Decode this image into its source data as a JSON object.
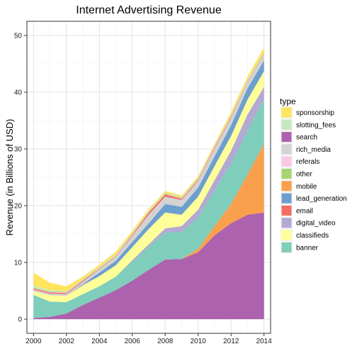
{
  "chart_data": {
    "type": "area",
    "title": "Internet Advertising Revenue",
    "xlabel": "",
    "ylabel": "Revenue (in Billions of USD)",
    "xlim": [
      1999.6,
      2014.4
    ],
    "ylim": [
      -2.5,
      52.5
    ],
    "x_ticks": [
      2000,
      2002,
      2004,
      2006,
      2008,
      2010,
      2012,
      2014
    ],
    "y_ticks": [
      0,
      10,
      20,
      30,
      40,
      50
    ],
    "grid": true,
    "stacked": true,
    "legend": {
      "title": "type",
      "placement": "right"
    },
    "x": [
      2000,
      2001,
      2002,
      2003,
      2004,
      2005,
      2006,
      2007,
      2008,
      2009,
      2010,
      2011,
      2012,
      2013,
      2014
    ],
    "series": [
      {
        "name": "search",
        "color": "#AC62AD",
        "values": [
          0.2,
          0.4,
          1.0,
          2.5,
          3.8,
          5.1,
          6.8,
          8.7,
          10.5,
          10.6,
          11.8,
          14.8,
          16.9,
          18.4,
          18.8
        ]
      },
      {
        "name": "mobile",
        "color": "#F9A04D",
        "values": [
          0,
          0,
          0,
          0,
          0,
          0,
          0,
          0,
          0,
          0,
          0.6,
          1.6,
          3.4,
          7.1,
          12.1
        ]
      },
      {
        "name": "banner",
        "color": "#7FCDBB",
        "values": [
          4.1,
          2.7,
          2.0,
          1.9,
          2.0,
          2.4,
          3.3,
          4.1,
          4.8,
          4.8,
          5.5,
          6.3,
          7.1,
          7.8,
          7.9
        ]
      },
      {
        "name": "digital_video",
        "color": "#B3A9D3",
        "values": [
          0,
          0,
          0,
          0,
          0,
          0,
          0.3,
          0.4,
          0.7,
          1.0,
          1.4,
          1.8,
          2.3,
          2.8,
          2.1
        ]
      },
      {
        "name": "classifieds",
        "color": "#FFFF99",
        "values": [
          0.6,
          1.1,
          1.1,
          1.6,
          1.8,
          2.0,
          2.3,
          2.7,
          2.8,
          2.0,
          2.3,
          2.5,
          2.6,
          2.6,
          2.8
        ]
      },
      {
        "name": "lead_generation",
        "color": "#6D9FCE",
        "values": [
          0,
          0,
          0,
          0.2,
          0.6,
          0.8,
          0.9,
          1.0,
          1.5,
          1.4,
          1.6,
          1.7,
          1.9,
          2.0,
          1.9
        ]
      },
      {
        "name": "rich_media",
        "color": "#D3D3D3",
        "values": [
          0.3,
          0.3,
          0.3,
          0.4,
          0.6,
          0.7,
          1.1,
          1.5,
          1.3,
          1.2,
          1.2,
          1.4,
          1.3,
          1.1,
          1.1
        ]
      },
      {
        "name": "email",
        "color": "#F46D62",
        "values": [
          0.2,
          0.2,
          0.2,
          0.2,
          0.1,
          0.1,
          0.2,
          0.4,
          0.4,
          0.2,
          0.2,
          0.2,
          0.2,
          0.1,
          0.1
        ]
      },
      {
        "name": "referals",
        "color": "#FAC8E4",
        "values": [
          0.1,
          0.1,
          0.1,
          0.1,
          0.1,
          0.1,
          0.1,
          0.1,
          0.1,
          0.1,
          0.1,
          0.1,
          0.1,
          0.1,
          0.1
        ]
      },
      {
        "name": "other",
        "color": "#A5D66F",
        "values": [
          0.1,
          0.1,
          0.1,
          0.1,
          0.1,
          0.1,
          0.1,
          0.1,
          0.1,
          0.1,
          0.1,
          0.1,
          0.1,
          0.1,
          0.1
        ]
      },
      {
        "name": "slotting_fees",
        "color": "#C7E8C0",
        "values": [
          0.3,
          0.2,
          0.1,
          0.1,
          0.1,
          0.1,
          0.1,
          0.1,
          0.1,
          0.1,
          0.1,
          0.1,
          0.1,
          0.1,
          0.1
        ]
      },
      {
        "name": "sponsorship",
        "color": "#FFE45C",
        "values": [
          2.3,
          1.3,
          0.9,
          0.4,
          0.4,
          0.5,
          0.4,
          0.3,
          0.3,
          0.3,
          0.3,
          0.3,
          0.5,
          0.6,
          0.8
        ]
      }
    ],
    "legend_order": [
      "sponsorship",
      "slotting_fees",
      "search",
      "rich_media",
      "referals",
      "other",
      "mobile",
      "lead_generation",
      "email",
      "digital_video",
      "classifieds",
      "banner"
    ]
  }
}
